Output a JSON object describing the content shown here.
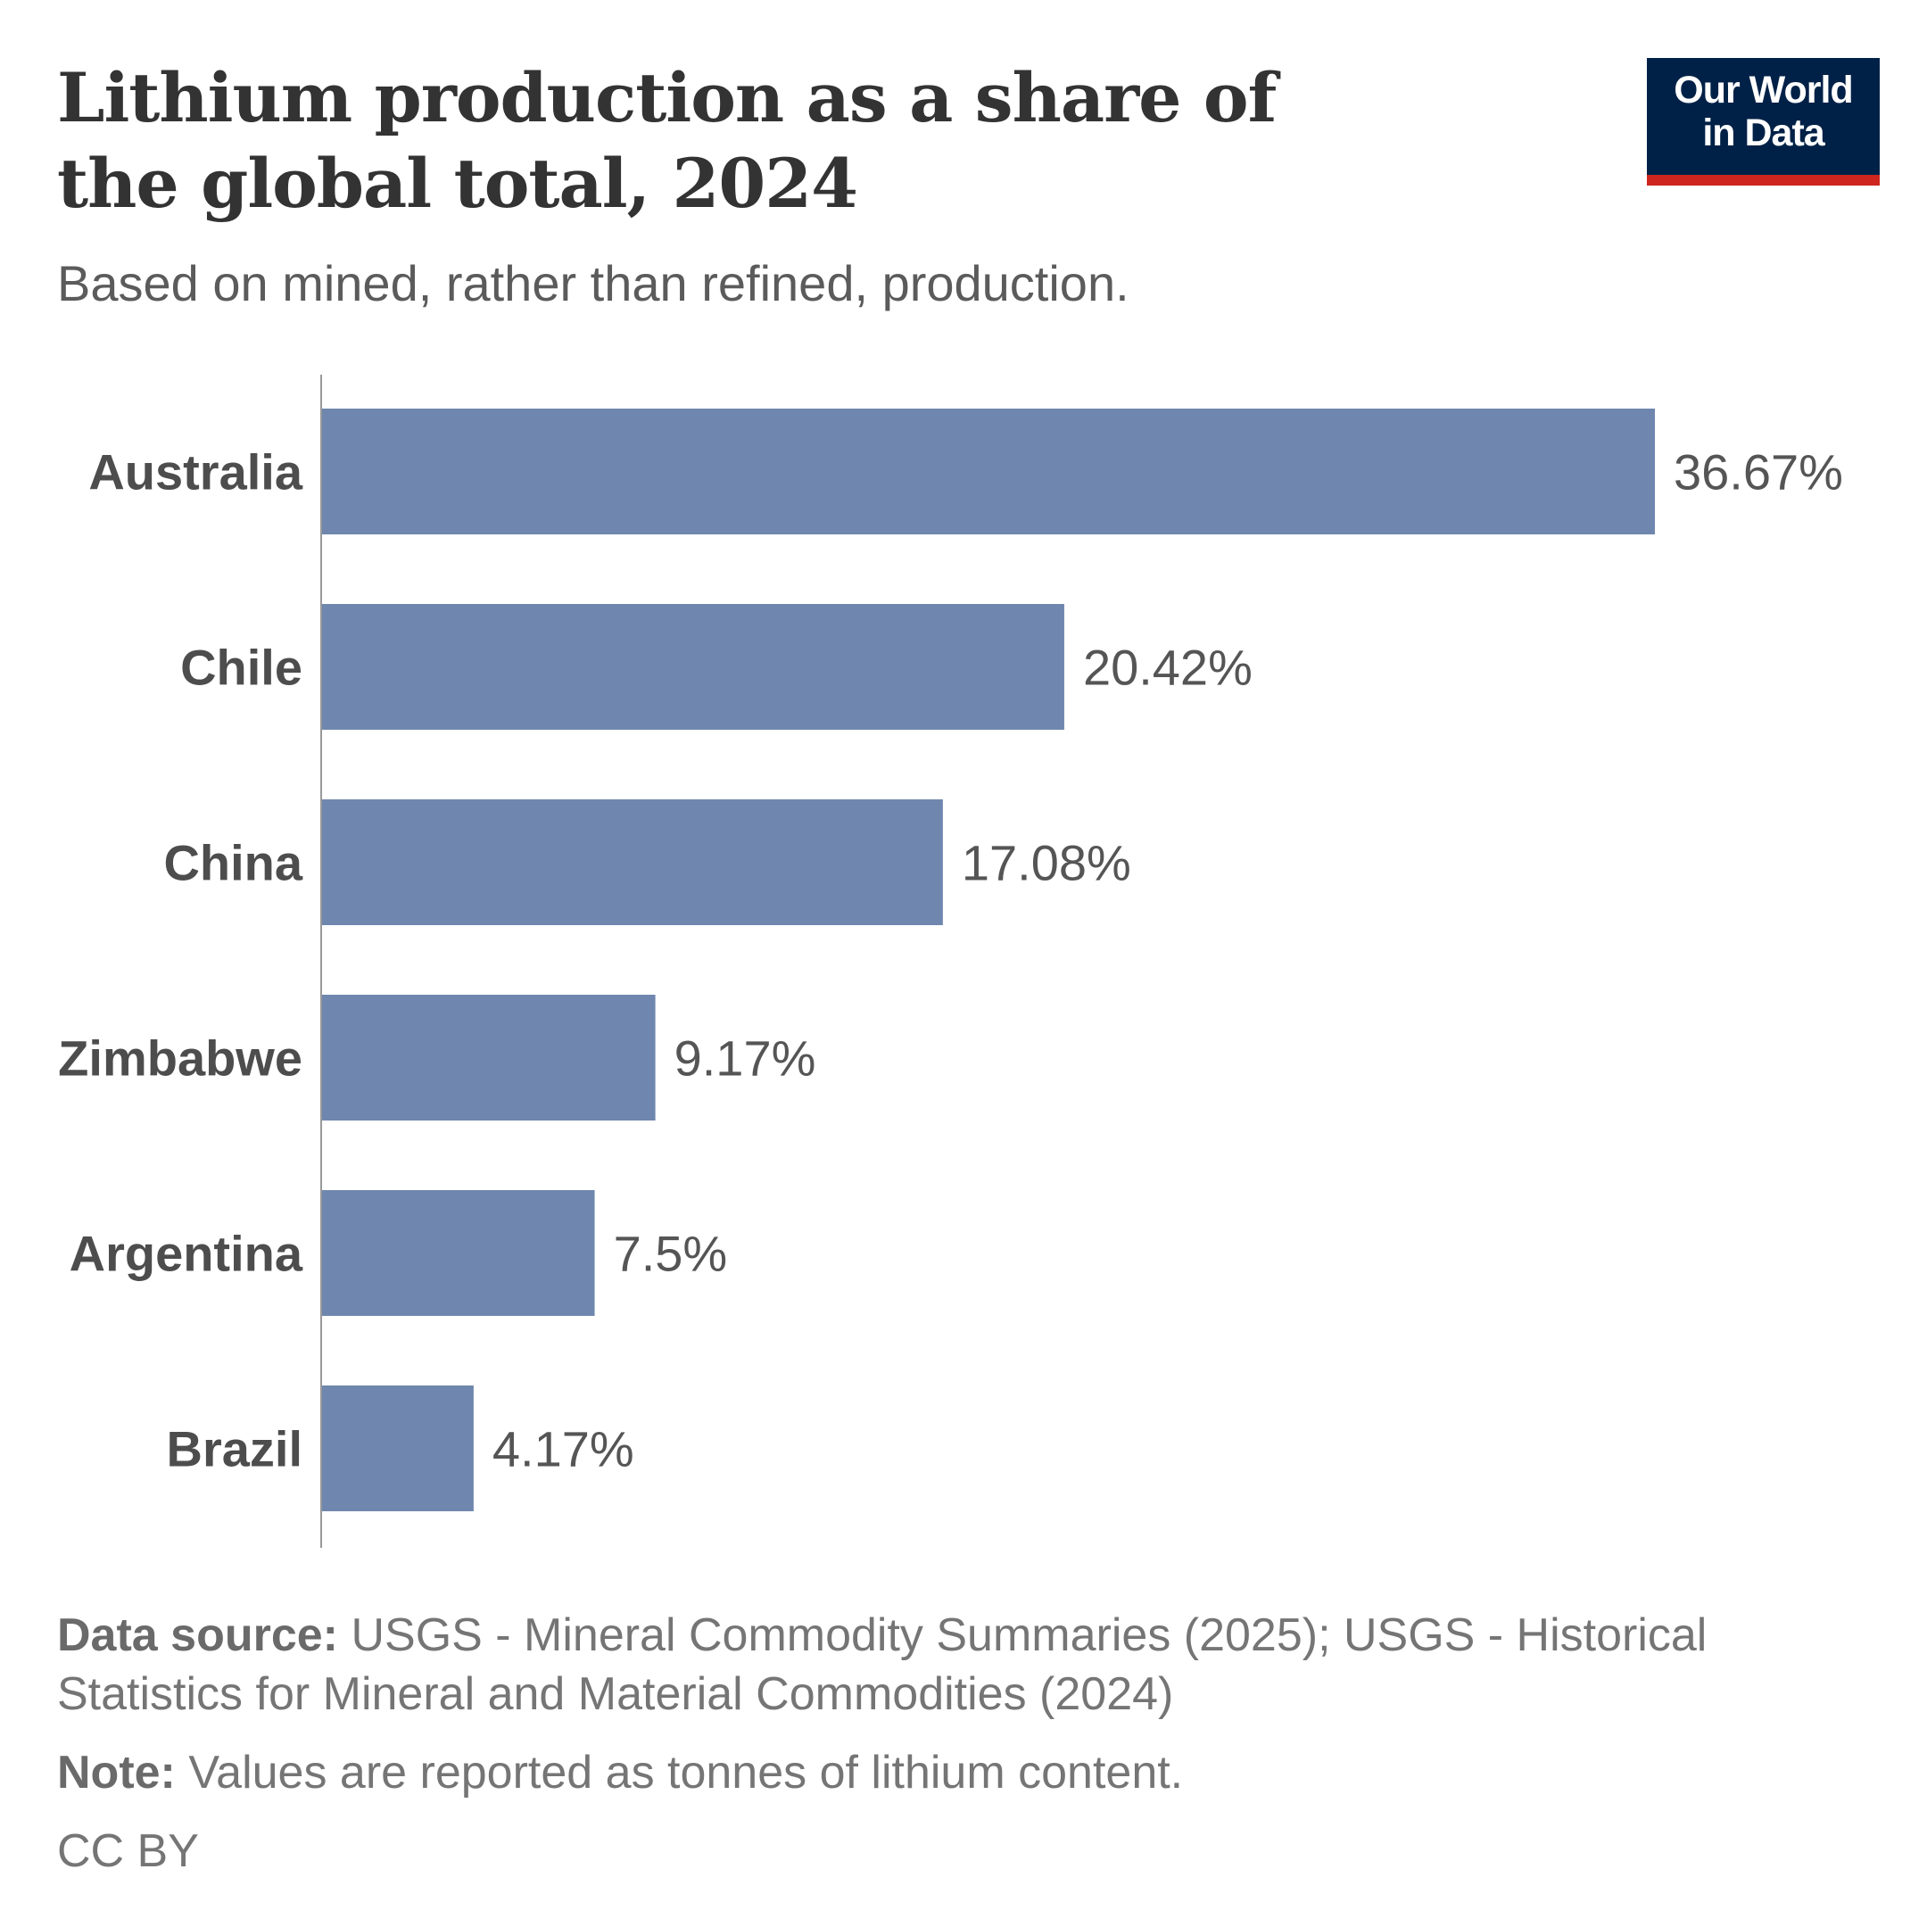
{
  "header": {
    "title": "Lithium production as a share of the global total, 2024",
    "subtitle": "Based on mined, rather than refined, production.",
    "logo": {
      "line1": "Our World",
      "line2": "in Data",
      "bg_color": "#002147",
      "accent_color": "#ce261e"
    }
  },
  "chart_data": {
    "type": "bar",
    "orientation": "horizontal",
    "categories": [
      "Australia",
      "Chile",
      "China",
      "Zimbabwe",
      "Argentina",
      "Brazil"
    ],
    "values": [
      36.67,
      20.42,
      17.08,
      9.17,
      7.5,
      4.17
    ],
    "value_labels": [
      "36.67%",
      "20.42%",
      "17.08%",
      "9.17%",
      "7.5%",
      "4.17%"
    ],
    "unit": "%",
    "bar_color": "#6f87ae",
    "grid": false
  },
  "footer": {
    "source_label": "Data source:",
    "source_text": "USGS - Mineral Commodity Summaries (2025); USGS - Historical Statistics for Mineral and Material Commodities (2024)",
    "note_label": "Note:",
    "note_text": "Values are reported as tonnes of lithium content.",
    "license": "CC BY"
  }
}
